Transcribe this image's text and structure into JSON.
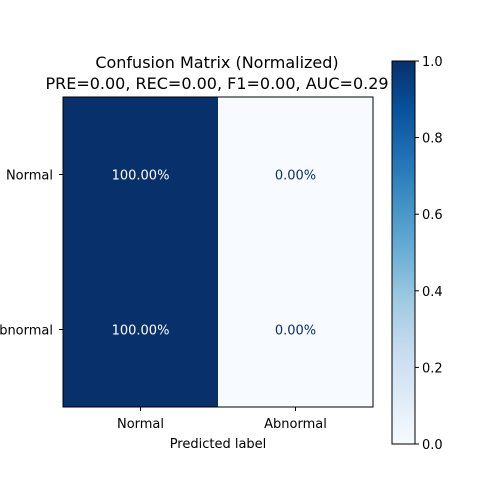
{
  "chart_data": {
    "type": "heatmap",
    "title": "Confusion Matrix (Normalized)",
    "subtitle": "PRE=0.00, REC=0.00, F1=0.00, AUC=0.29",
    "xlabel": "Predicted label",
    "ylabel": "",
    "x_categories": [
      "Normal",
      "Abnormal"
    ],
    "y_categories": [
      "Normal",
      "Abnormal"
    ],
    "values": [
      [
        1.0,
        0.0
      ],
      [
        1.0,
        0.0
      ]
    ],
    "cell_labels": [
      [
        "100.00%",
        "0.00%"
      ],
      [
        "100.00%",
        "0.00%"
      ]
    ],
    "colormap": "Blues",
    "colorbar": {
      "range": [
        0.0,
        1.0
      ],
      "ticks": [
        0.0,
        0.2,
        0.4,
        0.6,
        0.8,
        1.0
      ],
      "tick_labels": [
        "0.0",
        "0.2",
        "0.4",
        "0.6",
        "0.8",
        "1.0"
      ]
    },
    "colors": {
      "low": "#f7fbff",
      "high": "#08306b"
    },
    "grid": false
  }
}
